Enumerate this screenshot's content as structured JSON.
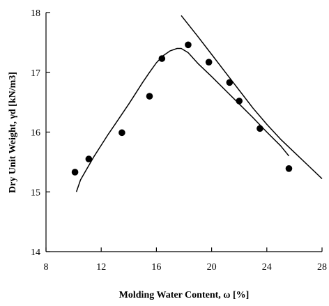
{
  "chart_data": {
    "type": "scatter",
    "title": "",
    "xlabel": "Molding Water Content, ω [%]",
    "ylabel": "Dry Unit Weight, γd [kN/m3]",
    "xlim": [
      8,
      28
    ],
    "ylim": [
      14,
      18
    ],
    "xticks": [
      8,
      12,
      16,
      20,
      24,
      28
    ],
    "yticks": [
      14,
      15,
      16,
      17,
      18
    ],
    "grid": false,
    "legend": "none",
    "series": [
      {
        "kind": "points",
        "marker": "filled-circle",
        "x": [
          10.1,
          11.1,
          13.5,
          15.5,
          16.4,
          18.3,
          19.8,
          21.3,
          22.0,
          23.5,
          25.6
        ],
        "y": [
          15.33,
          15.55,
          15.99,
          16.6,
          17.23,
          17.46,
          17.17,
          16.83,
          16.52,
          16.06,
          15.39
        ]
      },
      {
        "kind": "line",
        "x": [
          10.2,
          10.5,
          11.0,
          11.5,
          12.0,
          12.5,
          13.0,
          13.5,
          14.0,
          14.5,
          15.0,
          15.5,
          16.0,
          16.5,
          17.0,
          17.5,
          17.8,
          18.3,
          19.0,
          20.0,
          21.0,
          22.0,
          23.0,
          24.0,
          25.0,
          25.6
        ],
        "y": [
          15.0,
          15.2,
          15.4,
          15.6,
          15.78,
          15.96,
          16.13,
          16.3,
          16.47,
          16.65,
          16.83,
          17.0,
          17.16,
          17.28,
          17.36,
          17.4,
          17.4,
          17.33,
          17.15,
          16.93,
          16.7,
          16.47,
          16.24,
          16.0,
          15.77,
          15.6
        ]
      },
      {
        "kind": "line",
        "x": [
          17.8,
          19.0,
          20.0,
          21.0,
          22.0,
          23.0,
          24.0,
          25.0,
          26.0,
          27.0,
          28.0
        ],
        "y": [
          17.95,
          17.6,
          17.3,
          17.0,
          16.7,
          16.4,
          16.13,
          15.88,
          15.66,
          15.44,
          15.22
        ]
      }
    ],
    "labels": {
      "xticks": [
        "8",
        "12",
        "16",
        "20",
        "24",
        "28"
      ],
      "yticks": [
        "14",
        "15",
        "16",
        "17",
        "18"
      ],
      "xlabel": "Molding Water Content, ω [%]",
      "ylabel": "Dry Unit Weight, γd [kN/m3]"
    }
  }
}
